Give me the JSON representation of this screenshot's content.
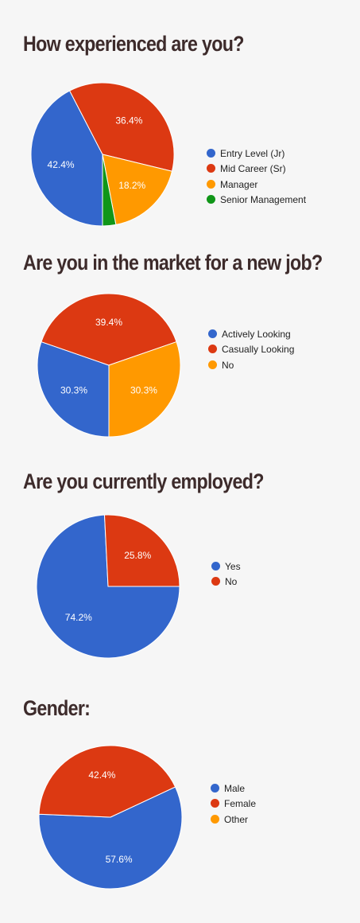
{
  "colors": {
    "blue": "#3366cc",
    "red": "#dc3912",
    "orange": "#ff9900",
    "green": "#109618"
  },
  "chart_data": [
    {
      "type": "pie",
      "title": "How experienced are you?",
      "legend_position": "right",
      "slices": [
        {
          "label": "Entry Level (Jr)",
          "value": 42.4,
          "color": "#3366cc",
          "text": "42.4%"
        },
        {
          "label": "Mid Career (Sr)",
          "value": 36.4,
          "color": "#dc3912",
          "text": "36.4%"
        },
        {
          "label": "Manager",
          "value": 18.2,
          "color": "#ff9900",
          "text": "18.2%"
        },
        {
          "label": "Senior Management",
          "value": 3.0,
          "color": "#109618",
          "text": ""
        }
      ]
    },
    {
      "type": "pie",
      "title": "Are you in the market for a new job?",
      "legend_position": "right",
      "slices": [
        {
          "label": "Actively Looking",
          "value": 30.3,
          "color": "#3366cc",
          "text": "30.3%"
        },
        {
          "label": "Casually Looking",
          "value": 39.4,
          "color": "#dc3912",
          "text": "39.4%"
        },
        {
          "label": "No",
          "value": 30.3,
          "color": "#ff9900",
          "text": "30.3%"
        }
      ]
    },
    {
      "type": "pie",
      "title": "Are you currently employed?",
      "legend_position": "right",
      "slices": [
        {
          "label": "Yes",
          "value": 74.2,
          "color": "#3366cc",
          "text": "74.2%"
        },
        {
          "label": "No",
          "value": 25.8,
          "color": "#dc3912",
          "text": "25.8%"
        }
      ]
    },
    {
      "type": "pie",
      "title": "Gender:",
      "legend_position": "right",
      "slices": [
        {
          "label": "Male",
          "value": 57.6,
          "color": "#3366cc",
          "text": "57.6%"
        },
        {
          "label": "Female",
          "value": 42.4,
          "color": "#dc3912",
          "text": "42.4%"
        },
        {
          "label": "Other",
          "value": 0,
          "color": "#ff9900",
          "text": ""
        }
      ]
    }
  ]
}
